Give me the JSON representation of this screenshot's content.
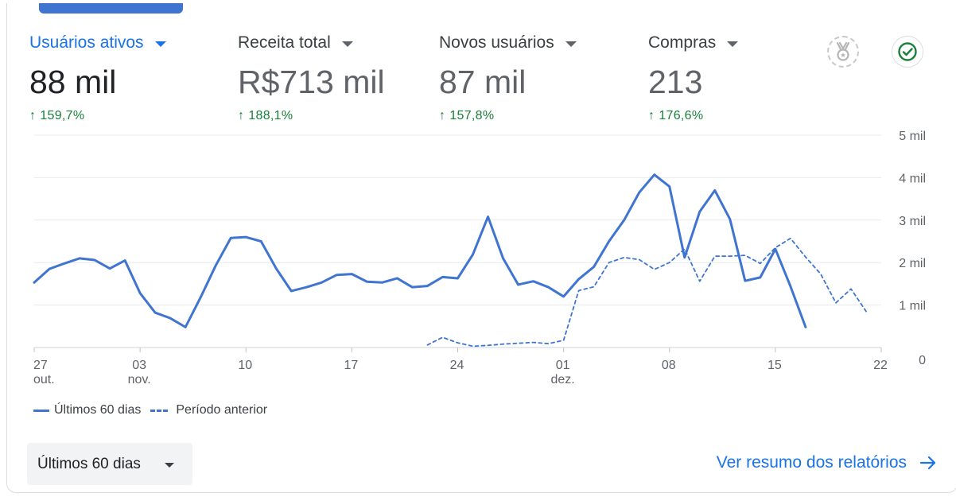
{
  "metrics": [
    {
      "label": "Usuários ativos",
      "value": "88 mil",
      "delta": "159,7%"
    },
    {
      "label": "Receita total",
      "value": "R$713 mil",
      "delta": "188,1%"
    },
    {
      "label": "Novos usuários",
      "value": "87 mil",
      "delta": "157,8%"
    },
    {
      "label": "Compras",
      "value": "213",
      "delta": "176,6%"
    }
  ],
  "icons": {
    "insights": "insights-badge-icon",
    "check": "check-circle-icon",
    "delta_up": "arrow-up-icon",
    "link_arrow": "arrow-right-icon"
  },
  "colors": {
    "series": "#3f74d1",
    "positive": "#188038",
    "link": "#1a73e8"
  },
  "chart_data": {
    "type": "line",
    "title": "",
    "xlabel": "",
    "ylabel": "",
    "ylim": [
      0,
      5000
    ],
    "yticks": [
      "0",
      "1 mil",
      "2 mil",
      "3 mil",
      "4 mil",
      "5 mil"
    ],
    "x_ticks": [
      {
        "index": 0,
        "day": "27",
        "month": "out."
      },
      {
        "index": 7,
        "day": "03",
        "month": "nov."
      },
      {
        "index": 14,
        "day": "10",
        "month": ""
      },
      {
        "index": 21,
        "day": "17",
        "month": ""
      },
      {
        "index": 28,
        "day": "24",
        "month": ""
      },
      {
        "index": 35,
        "day": "01",
        "month": "dez."
      },
      {
        "index": 42,
        "day": "08",
        "month": ""
      },
      {
        "index": 49,
        "day": "15",
        "month": ""
      },
      {
        "index": 56,
        "day": "22",
        "month": ""
      }
    ],
    "grid": true,
    "legend_position": "bottom-left",
    "series": [
      {
        "name": "Últimos 60 dias",
        "style": "solid",
        "start_index": 0,
        "values": [
          1530,
          1850,
          1980,
          2100,
          2060,
          1860,
          2050,
          1280,
          820,
          690,
          480,
          1180,
          1930,
          2580,
          2600,
          2500,
          1860,
          1330,
          1420,
          1530,
          1710,
          1730,
          1550,
          1530,
          1630,
          1420,
          1450,
          1660,
          1630,
          2190,
          3080,
          2100,
          1480,
          1560,
          1420,
          1200,
          1610,
          1900,
          2500,
          3000,
          3650,
          4070,
          3790,
          2120,
          3200,
          3700,
          3020,
          1570,
          1650,
          2320,
          1440,
          480
        ]
      },
      {
        "name": "Período anterior",
        "style": "dashed",
        "start_index": 26,
        "values": [
          60,
          240,
          110,
          30,
          50,
          80,
          100,
          120,
          90,
          170,
          1340,
          1430,
          2000,
          2120,
          2070,
          1840,
          2000,
          2320,
          1560,
          2150,
          2150,
          2170,
          1980,
          2350,
          2570,
          2130,
          1730,
          1050,
          1380,
          850
        ]
      }
    ]
  },
  "legend": {
    "current": "Últimos 60 dias",
    "previous": "Período anterior"
  },
  "footer": {
    "period_label": "Últimos 60 dias",
    "report_link": "Ver resumo dos relatórios"
  }
}
